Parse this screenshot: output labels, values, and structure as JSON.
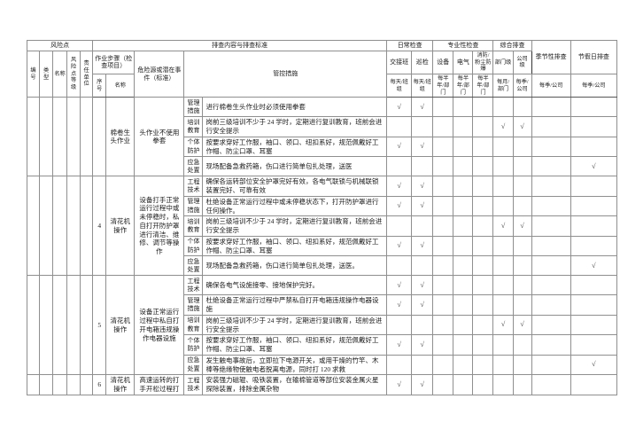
{
  "table": {
    "checkmark": "√",
    "top": {
      "risk_point": "风险点",
      "content": "排查内容与排查标准",
      "daily": "日常检查",
      "professional": "专业性检查",
      "comprehensive": "综合排查",
      "seasonal": "季节性排查",
      "holiday": "节假日排查"
    },
    "cols": {
      "id": "编号",
      "type": "类型",
      "name": "名称",
      "level": "风险点等级",
      "unit": "责任单位",
      "step_group": "作业步骤（检查项目）",
      "step_no": "序号",
      "step_name": "名称",
      "hazard": "危险源或潜在事件（标准）",
      "measures": "管控措施",
      "shift": "交接班",
      "patrol": "巡检",
      "equipment": "设备",
      "electric": "电气",
      "fire": "消防/粉尘防爆",
      "dept": "部门级",
      "company": "公司级"
    },
    "freq": {
      "shift": "每天/班组",
      "patrol": "每天/班组",
      "equipment": "每半年/部门",
      "electric": "每半年/部门",
      "fire": "每半年/部门",
      "dept": "每月/部门",
      "company": "每季/公司",
      "seasonal": "每季/公司",
      "holiday": "每季/公司"
    },
    "groups": [
      {
        "no": "",
        "step": "棉卷生头作业",
        "hazard": "头作业不使用拳套",
        "rows": [
          {
            "cat": "管理措施",
            "text": "进行棉卷生头作业时必须使用拳套",
            "checks": [
              "shift",
              "patrol"
            ]
          },
          {
            "cat": "培训教育",
            "text": "岗前三级培训不少于 24 学时，定期进行复训教育，班前会进行安全提示",
            "checks": [
              "dept",
              "company"
            ]
          },
          {
            "cat": "个体防护",
            "text": "按要求穿好工作服，袖口、领口、纽扣系好，规范佩戴好工作帽、防尘口罩、耳塞",
            "checks": [
              "shift",
              "patrol"
            ]
          },
          {
            "cat": "应急处置",
            "text": "现场配备急救药箱，伤口进行简单包扎处理，送医",
            "checks": [
              "holiday"
            ]
          }
        ]
      },
      {
        "no": "4",
        "step": "清花机操作",
        "hazard": "设备打手正常运行过程中或未停稳时，私自打开防护罩进行清洁、维修、调节等操作",
        "rows": [
          {
            "cat": "工程技术",
            "text": "确保各运转部位安全护罩完好有效，各电气联锁与机械联锁装置完好、可靠有效",
            "checks": [
              "shift",
              "patrol"
            ]
          },
          {
            "cat": "管理措施",
            "text": "杜绝设备正常运行过程中或未停稳状态下，打开防护罩进行任何操作。",
            "checks": [
              "shift",
              "patrol"
            ]
          },
          {
            "cat": "培训教育",
            "text": "岗前三级培训不少于 24 学时，定期进行复训教育，班前会进行安全提示",
            "checks": [
              "dept",
              "company"
            ]
          },
          {
            "cat": "个体防护",
            "text": "按要求穿好工作服，袖口、领口、纽扣系好，规范佩戴好工作帽、防尘口罩、耳塞",
            "checks": [
              "shift",
              "patrol"
            ]
          },
          {
            "cat": "应急处置",
            "text": "现场配备急救药箱，伤口进行简单包扎处理，送医。",
            "checks": [
              "holiday"
            ]
          }
        ]
      },
      {
        "no": "5",
        "step": "清花机操作",
        "hazard": "设备正常运行过程中私自打开电箱违规操作电器设施",
        "rows": [
          {
            "cat": "工程技术",
            "text": "确保各电气设施接零、接地保护完好。",
            "checks": [
              "shift",
              "patrol"
            ]
          },
          {
            "cat": "管理措施",
            "text": "杜绝设备正常运行过程中严禁私自打开电箱违规操作电器设施",
            "checks": [
              "shift",
              "patrol"
            ]
          },
          {
            "cat": "培训教育",
            "text": "岗前三级培训不少于 24 学时，定期进行复训教育，班前会进行安全提示",
            "checks": [
              "dept",
              "company"
            ]
          },
          {
            "cat": "个体防护",
            "text": "按要求穿好工作服，袖口、领口、纽扣系好，规范佩戴好工作帽、防尘口罩、耳塞",
            "checks": [
              "shift",
              "patrol"
            ]
          },
          {
            "cat": "应急处置",
            "text": "发生触电事故后，立即拉下电源开关，或用干燥的竹竿、木棒等绝缘物使触电者脱离电源，同时打 120 求救",
            "checks": [
              "holiday"
            ]
          }
        ]
      },
      {
        "no": "6",
        "step": "清花机操作",
        "hazard": "高速运转的打手开松过程打",
        "rows": [
          {
            "cat": "工程技术",
            "text": "安装强力磁辊、吸铁装置，在输棉管道等部位安装金属火星探除装置，排除金属杂物",
            "checks": [
              "shift",
              "patrol"
            ]
          }
        ]
      }
    ]
  }
}
